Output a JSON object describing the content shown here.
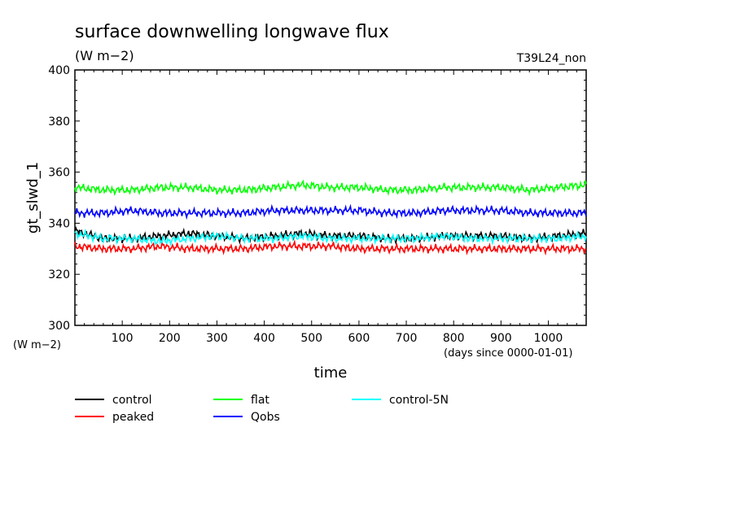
{
  "chart_data": {
    "type": "line",
    "title": "surface downwelling longwave flux",
    "units": "(W m−2)",
    "corner_label": "T39L24_non",
    "ylabel": "gt_slwd_1",
    "xlabel": "time",
    "xunit": "(days since 0000-01-01)",
    "yunit": "(W m−2)",
    "xlim": [
      0,
      1080
    ],
    "ylim": [
      300,
      400
    ],
    "x_ticks": [
      100,
      200,
      300,
      400,
      500,
      600,
      700,
      800,
      900,
      1000
    ],
    "y_ticks": [
      300,
      320,
      340,
      360,
      380,
      400
    ],
    "grid": false,
    "legend_position": "bottom",
    "x": [
      0,
      60,
      120,
      180,
      240,
      300,
      360,
      420,
      480,
      540,
      600,
      660,
      720,
      780,
      840,
      900,
      960,
      1020,
      1080
    ],
    "series": [
      {
        "name": "control",
        "color": "#000000",
        "values": [
          337,
          334,
          334,
          335,
          336,
          335,
          334,
          335,
          336,
          335,
          335,
          334,
          334,
          335,
          335,
          335,
          334,
          335,
          336
        ]
      },
      {
        "name": "peaked",
        "color": "#ff0000",
        "values": [
          331,
          330,
          330,
          331,
          330,
          330,
          330,
          331,
          331,
          331,
          330,
          330,
          330,
          330,
          330,
          330,
          330,
          330,
          330
        ]
      },
      {
        "name": "flat",
        "color": "#00ff00",
        "values": [
          354,
          353,
          353,
          354,
          354,
          353,
          353,
          354,
          355,
          354,
          354,
          353,
          353,
          354,
          354,
          354,
          353,
          354,
          355
        ]
      },
      {
        "name": "Qobs",
        "color": "#0000ff",
        "values": [
          344,
          344,
          345,
          344,
          344,
          344,
          344,
          345,
          345,
          345,
          345,
          344,
          344,
          345,
          345,
          345,
          344,
          344,
          344
        ]
      },
      {
        "name": "control-5N",
        "color": "#00ffff",
        "values": [
          336,
          334,
          334,
          333,
          334,
          335,
          334,
          334,
          335,
          334,
          334,
          334,
          334,
          335,
          334,
          334,
          334,
          334,
          335
        ]
      }
    ]
  }
}
